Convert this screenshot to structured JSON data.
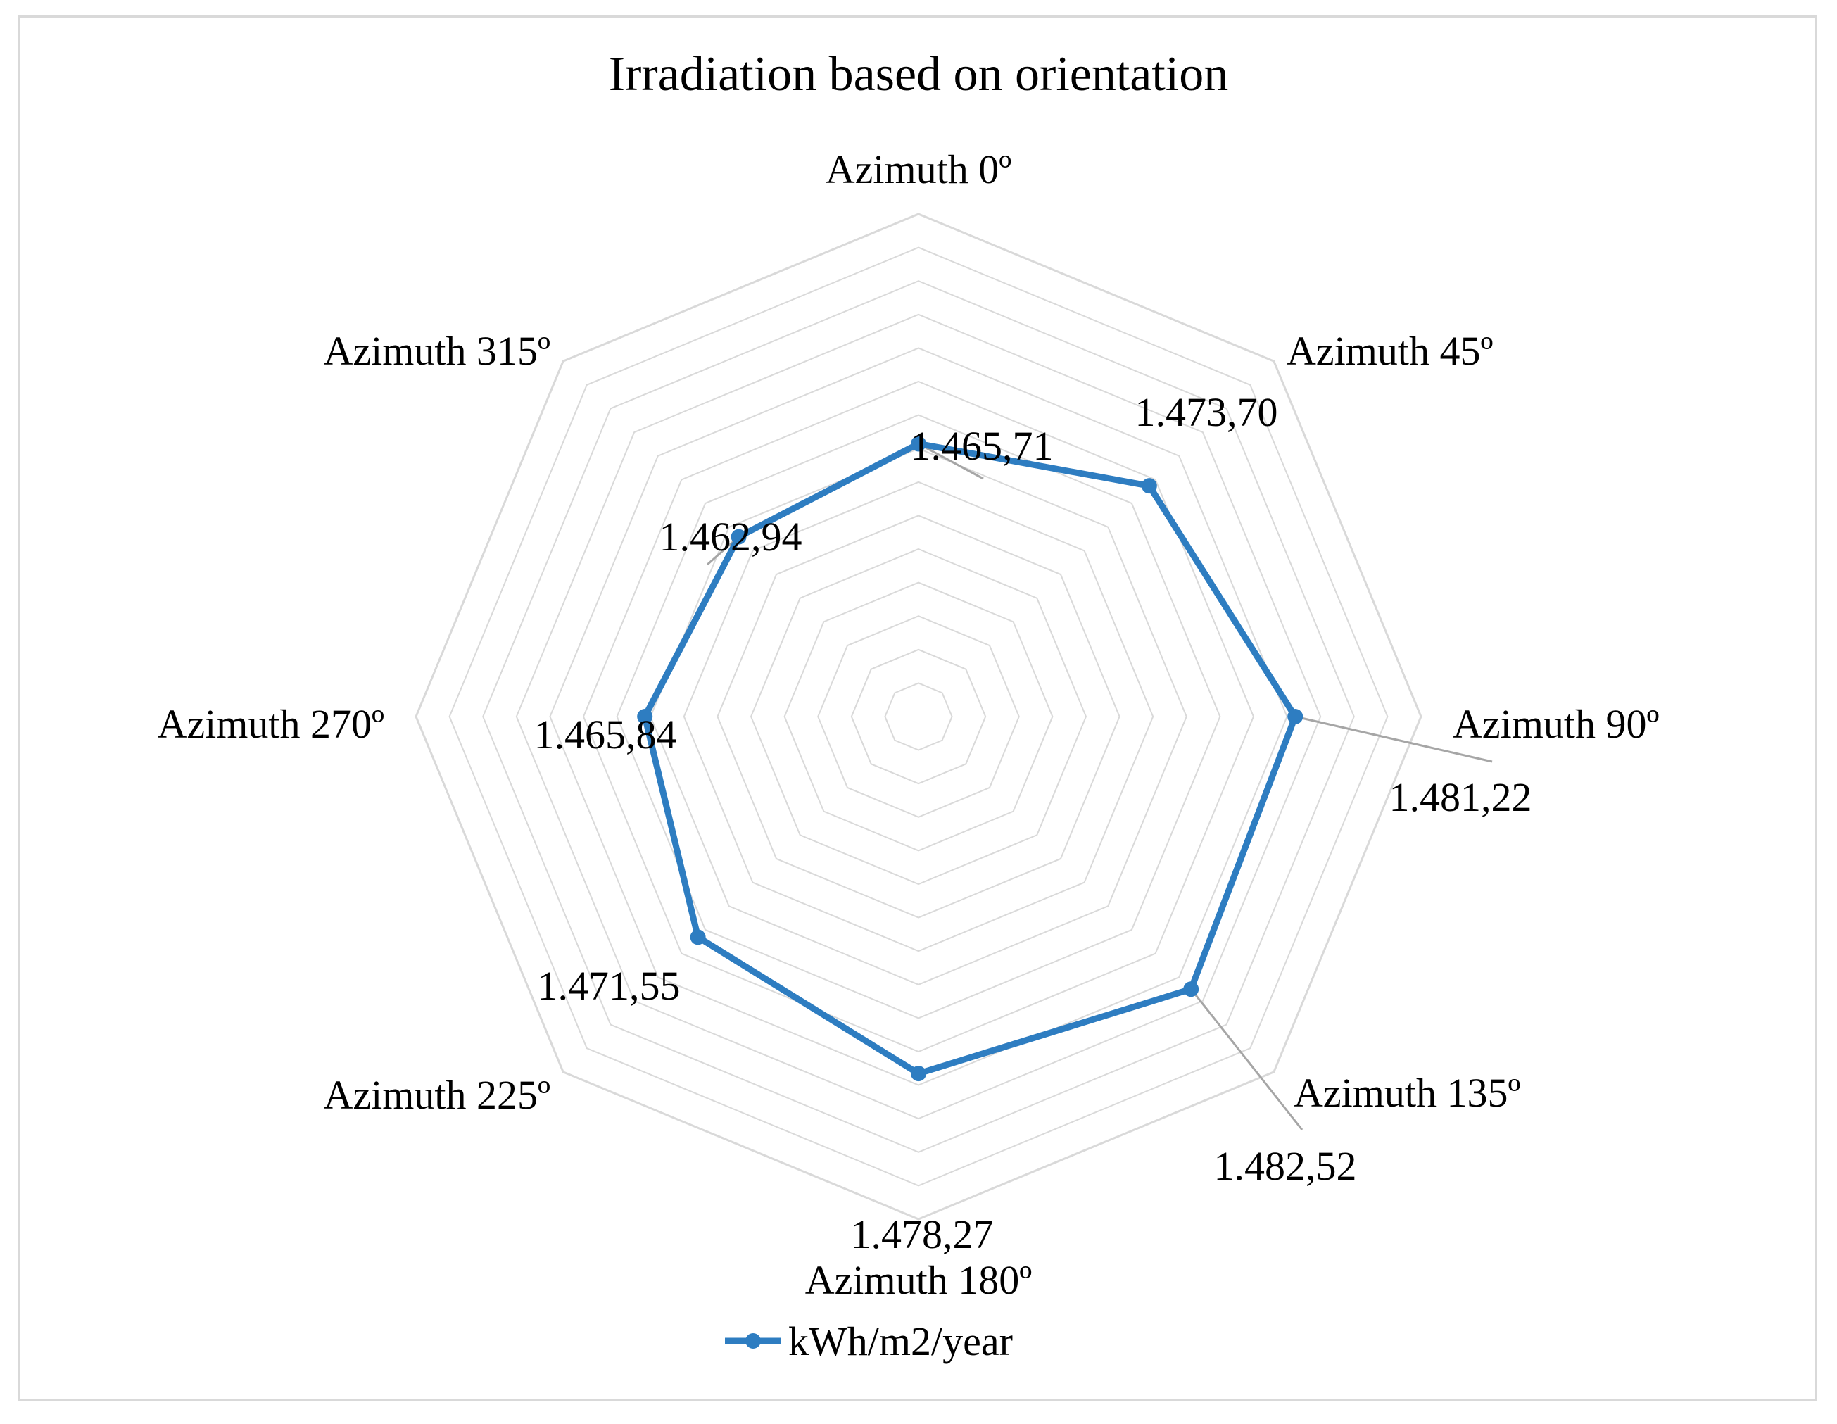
{
  "chart_data": {
    "type": "radar",
    "title": "Irradiation based on orientation",
    "categories": [
      "Azimuth 0º",
      "Azimuth 45º",
      "Azimuth 90º",
      "Azimuth 135º",
      "Azimuth 180º",
      "Azimuth 225º",
      "Azimuth 270º",
      "Azimuth 315º"
    ],
    "series": [
      {
        "name": "kWh/m2/year",
        "color": "#2e7dc1",
        "values": [
          1465.71,
          1473.7,
          1481.22,
          1482.52,
          1478.27,
          1471.55,
          1465.84,
          1462.94
        ],
        "data_labels": [
          "1.465,71",
          "1.473,70",
          "1.481,22",
          "1.482,52",
          "1.478,27",
          "1.471,55",
          "1.465,84",
          "1.462,94"
        ]
      }
    ],
    "radial_axis": {
      "min": 1425,
      "max": 1500,
      "gridlines": true,
      "tick_labels_visible": false
    },
    "legend": {
      "position": "bottom",
      "entries": [
        "kWh/m2/year"
      ]
    },
    "colors": {
      "series": "#2e7dc1",
      "grid": "#d9d9d9",
      "leader_line": "#a6a6a6",
      "frame": "#d9d9d9"
    }
  }
}
